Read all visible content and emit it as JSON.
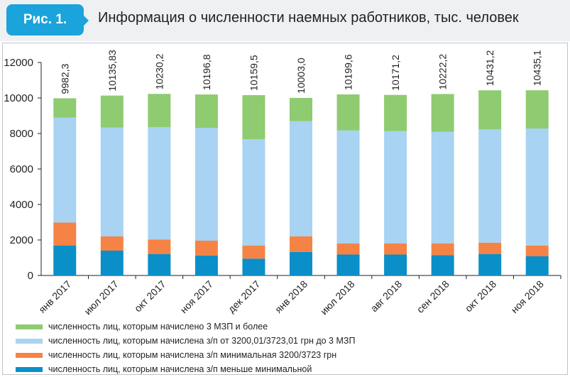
{
  "header": {
    "figure_label": "Рис. 1.",
    "title": "Информация о численности наемных работников, тыс. человек"
  },
  "chart_data": {
    "type": "bar",
    "stacked": true,
    "categories": [
      "янв 2017",
      "июл 2017",
      "окт 2017",
      "ноя 2017",
      "дек 2017",
      "янв 2018",
      "июл 2018",
      "авг 2018",
      "сен 2018",
      "окт 2018",
      "ноя 2018"
    ],
    "totals": [
      "9982,3",
      "10135,83",
      "10230,2",
      "10196,8",
      "10159,5",
      "10003,0",
      "10199,6",
      "10171,2",
      "10222,2",
      "10431,2",
      "10435,1"
    ],
    "ylim": [
      0,
      12000
    ],
    "yticks": [
      0,
      2000,
      4000,
      6000,
      8000,
      10000,
      12000
    ],
    "grid": false,
    "legend_position": "bottom",
    "series": [
      {
        "name": "численность лиц, которым начислена з/п меньше минимальной",
        "color": "#0a8fc9",
        "values": [
          1680,
          1400,
          1200,
          1130,
          950,
          1330,
          1180,
          1180,
          1150,
          1200,
          1080
        ]
      },
      {
        "name": "численность лиц, которым начислена з/п минимальная 3200/3723 грн",
        "color": "#f58345",
        "values": [
          1300,
          800,
          830,
          830,
          730,
          880,
          620,
          620,
          660,
          650,
          610
        ]
      },
      {
        "name": "численность лиц, которым начислена з/п от 3200,01/3723,01 грн до 3 МЗП",
        "color": "#a8d3f2",
        "values": [
          5920,
          6130,
          6330,
          6360,
          6000,
          6480,
          6370,
          6330,
          6290,
          6390,
          6590
        ]
      },
      {
        "name": "численность лиц, которым начислено 3 МЗП и более",
        "color": "#8fcb70",
        "values": [
          1082.3,
          1805.83,
          1870.2,
          1876.8,
          2479.5,
          1313.0,
          2029.6,
          2041.2,
          2122.2,
          2191.2,
          2155.1
        ]
      }
    ],
    "legend_order": [
      3,
      2,
      1,
      0
    ]
  }
}
